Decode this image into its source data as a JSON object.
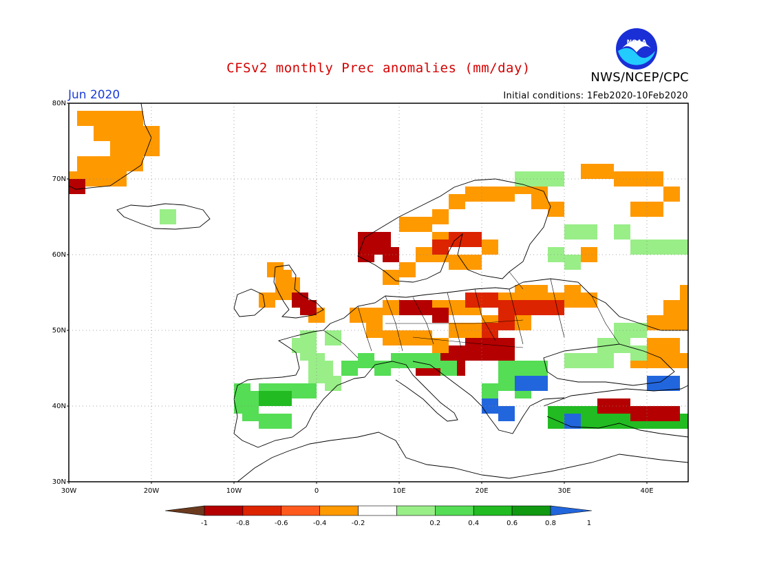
{
  "header": {
    "title": "CFSv2 monthly Prec anomalies (mm/day)",
    "agency": "NWS/NCEP/CPC",
    "month": "Jun 2020",
    "initial_conditions": "Initial conditions: 1Feb2020-10Feb2020",
    "logo_text": "NOAA"
  },
  "map": {
    "projection": "lat-lon",
    "lon_range": [
      -30,
      45
    ],
    "lat_range": [
      30,
      80
    ],
    "lat_labels": [
      "80N",
      "70N",
      "60N",
      "50N",
      "40N",
      "30N"
    ],
    "lon_labels": [
      "30W",
      "20W",
      "10W",
      "0",
      "10E",
      "20E",
      "30E",
      "40E"
    ]
  },
  "colorbar": {
    "labels": [
      "-1",
      "-0.8",
      "-0.6",
      "-0.4",
      "-0.2",
      "0.2",
      "0.4",
      "0.6",
      "0.8",
      "1"
    ],
    "colors": [
      "#6b3a1e",
      "#b40000",
      "#dc2400",
      "#ff5a1e",
      "#ff9900",
      "#ffffff",
      "#99ee88",
      "#55dd55",
      "#22bb22",
      "#119911",
      "#2266dd"
    ]
  },
  "anomaly_regions": [
    {
      "name": "greenland",
      "cat": -0.4,
      "cells": [
        [
          -28,
          78
        ],
        [
          -26,
          78
        ],
        [
          -24,
          78
        ],
        [
          -22,
          78
        ],
        [
          -26,
          76
        ],
        [
          -24,
          76
        ],
        [
          -22,
          76
        ],
        [
          -20,
          76
        ],
        [
          -24,
          74
        ],
        [
          -22,
          74
        ],
        [
          -20,
          74
        ],
        [
          -28,
          72
        ],
        [
          -26,
          72
        ],
        [
          -24,
          72
        ],
        [
          -22,
          72
        ],
        [
          -30,
          70
        ],
        [
          -28,
          70
        ],
        [
          -26,
          70
        ],
        [
          -24,
          70
        ]
      ]
    },
    {
      "name": "greenland-red",
      "cat": -0.8,
      "cells": [
        [
          -30,
          69
        ]
      ]
    },
    {
      "name": "iceland",
      "cat": 0.2,
      "cells": [
        [
          -18,
          65
        ]
      ]
    },
    {
      "name": "uk-ireland",
      "cat": -0.4,
      "cells": [
        [
          -5,
          58
        ],
        [
          -4,
          57
        ],
        [
          -3,
          56
        ],
        [
          -4,
          55
        ],
        [
          -2,
          54
        ],
        [
          -1,
          53
        ],
        [
          -6,
          54
        ],
        [
          0,
          52
        ]
      ]
    },
    {
      "name": "uk-red",
      "cat": -0.8,
      "cells": [
        [
          -2,
          54
        ],
        [
          -1,
          53
        ]
      ]
    },
    {
      "name": "norway-red",
      "cat": -0.8,
      "cells": [
        [
          6,
          62
        ],
        [
          7,
          61
        ],
        [
          8,
          62
        ],
        [
          6,
          60
        ],
        [
          9,
          60
        ]
      ]
    },
    {
      "name": "scandinavia-orange",
      "cat": -0.4,
      "cells": [
        [
          11,
          64
        ],
        [
          13,
          64
        ],
        [
          15,
          65
        ],
        [
          17,
          67
        ],
        [
          19,
          68
        ],
        [
          21,
          68
        ],
        [
          23,
          68
        ],
        [
          25,
          69
        ],
        [
          27,
          69
        ],
        [
          15,
          62
        ],
        [
          17,
          62
        ],
        [
          19,
          62
        ],
        [
          21,
          61
        ],
        [
          13,
          60
        ],
        [
          15,
          60
        ],
        [
          17,
          59
        ],
        [
          19,
          59
        ],
        [
          11,
          58
        ],
        [
          9,
          57
        ],
        [
          27,
          67
        ],
        [
          29,
          66
        ]
      ]
    },
    {
      "name": "sweden-red",
      "cat": -0.6,
      "cells": [
        [
          17,
          62
        ],
        [
          19,
          62
        ],
        [
          15,
          61
        ]
      ]
    },
    {
      "name": "baltic-central",
      "cat": -0.4,
      "cells": [
        [
          5,
          52
        ],
        [
          7,
          52
        ],
        [
          9,
          53
        ],
        [
          11,
          53
        ],
        [
          13,
          53
        ],
        [
          15,
          53
        ],
        [
          17,
          53
        ],
        [
          19,
          53
        ],
        [
          21,
          54
        ],
        [
          23,
          54
        ],
        [
          25,
          55
        ],
        [
          27,
          55
        ],
        [
          29,
          54
        ],
        [
          31,
          54
        ],
        [
          25,
          53
        ],
        [
          27,
          53
        ],
        [
          23,
          52
        ],
        [
          25,
          51
        ],
        [
          21,
          51
        ],
        [
          19,
          50
        ],
        [
          17,
          50
        ],
        [
          7,
          50
        ],
        [
          9,
          49
        ],
        [
          11,
          49
        ],
        [
          13,
          49
        ],
        [
          15,
          48
        ],
        [
          33,
          54
        ],
        [
          31,
          55
        ]
      ]
    },
    {
      "name": "central-red",
      "cat": -0.8,
      "cells": [
        [
          11,
          53
        ],
        [
          13,
          53
        ],
        [
          15,
          52
        ],
        [
          17,
          47
        ],
        [
          19,
          47
        ],
        [
          21,
          47
        ],
        [
          23,
          47
        ],
        [
          21,
          48
        ],
        [
          23,
          48
        ],
        [
          19,
          48
        ],
        [
          17,
          46
        ],
        [
          15,
          46
        ],
        [
          13,
          46
        ],
        [
          15,
          45
        ],
        [
          13,
          45
        ],
        [
          17,
          45
        ]
      ]
    },
    {
      "name": "baltic-red",
      "cat": -0.6,
      "cells": [
        [
          19,
          54
        ],
        [
          21,
          54
        ],
        [
          23,
          53
        ],
        [
          25,
          53
        ],
        [
          27,
          53
        ],
        [
          29,
          53
        ],
        [
          23,
          51
        ],
        [
          21,
          50
        ]
      ]
    },
    {
      "name": "alps-green",
      "cat": 0.4,
      "cells": [
        [
          6,
          46
        ],
        [
          8,
          45
        ],
        [
          10,
          46
        ],
        [
          12,
          46
        ],
        [
          14,
          46
        ],
        [
          16,
          45
        ],
        [
          4,
          45
        ]
      ]
    },
    {
      "name": "france-green",
      "cat": 0.2,
      "cells": [
        [
          -2,
          48
        ],
        [
          -1,
          47
        ],
        [
          0,
          46
        ],
        [
          1,
          45
        ],
        [
          0,
          44
        ],
        [
          2,
          43
        ],
        [
          -1,
          49
        ],
        [
          2,
          49
        ]
      ]
    },
    {
      "name": "iberia-green",
      "cat": 0.4,
      "cells": [
        [
          -9,
          42
        ],
        [
          -8,
          41
        ],
        [
          -7,
          41
        ],
        [
          -6,
          42
        ],
        [
          -5,
          42
        ],
        [
          -3,
          42
        ],
        [
          -2,
          42
        ],
        [
          -9,
          40
        ],
        [
          -8,
          39
        ],
        [
          -6,
          38
        ],
        [
          -4,
          38
        ],
        [
          -1,
          42
        ]
      ]
    },
    {
      "name": "iberia-green2",
      "cat": 0.6,
      "cells": [
        [
          -6,
          41
        ],
        [
          -4,
          41
        ]
      ]
    },
    {
      "name": "balkans-green",
      "cat": 0.4,
      "cells": [
        [
          23,
          45
        ],
        [
          25,
          45
        ],
        [
          27,
          45
        ],
        [
          25,
          44
        ],
        [
          27,
          44
        ],
        [
          23,
          43
        ],
        [
          25,
          42
        ],
        [
          21,
          42
        ],
        [
          21,
          41
        ]
      ]
    },
    {
      "name": "balkans-blue",
      "cat": 1,
      "cells": [
        [
          25,
          43
        ],
        [
          27,
          43
        ],
        [
          21,
          40
        ],
        [
          23,
          39
        ]
      ]
    },
    {
      "name": "turkey-green",
      "cat": 0.6,
      "cells": [
        [
          29,
          39
        ],
        [
          31,
          39
        ],
        [
          33,
          39
        ],
        [
          35,
          39
        ],
        [
          33,
          38
        ],
        [
          35,
          38
        ],
        [
          29,
          38
        ],
        [
          31,
          38
        ],
        [
          37,
          38
        ],
        [
          39,
          38
        ],
        [
          41,
          38
        ],
        [
          43,
          38
        ],
        [
          45,
          38
        ]
      ]
    },
    {
      "name": "turkey-blue",
      "cat": 1,
      "cells": [
        [
          31,
          38
        ],
        [
          41,
          43
        ],
        [
          43,
          43
        ]
      ]
    },
    {
      "name": "turkey-red",
      "cat": -0.8,
      "cells": [
        [
          35,
          40
        ],
        [
          37,
          40
        ],
        [
          39,
          39
        ],
        [
          41,
          39
        ],
        [
          43,
          39
        ]
      ]
    },
    {
      "name": "russia-orange",
      "cat": -0.4,
      "cells": [
        [
          33,
          71
        ],
        [
          35,
          71
        ],
        [
          37,
          70
        ],
        [
          39,
          70
        ],
        [
          41,
          70
        ],
        [
          39,
          66
        ],
        [
          41,
          66
        ],
        [
          43,
          68
        ],
        [
          43,
          53
        ],
        [
          45,
          53
        ],
        [
          41,
          51
        ],
        [
          43,
          51
        ],
        [
          45,
          51
        ],
        [
          43,
          48
        ],
        [
          41,
          48
        ],
        [
          39,
          46
        ],
        [
          41,
          46
        ],
        [
          43,
          46
        ],
        [
          45,
          46
        ],
        [
          45,
          55
        ],
        [
          33,
          60
        ]
      ]
    },
    {
      "name": "russia-green",
      "cat": 0.2,
      "cells": [
        [
          25,
          70
        ],
        [
          27,
          70
        ],
        [
          29,
          70
        ],
        [
          31,
          63
        ],
        [
          33,
          63
        ],
        [
          37,
          63
        ],
        [
          39,
          61
        ],
        [
          41,
          61
        ],
        [
          43,
          61
        ],
        [
          45,
          61
        ],
        [
          29,
          60
        ],
        [
          31,
          59
        ],
        [
          35,
          48
        ],
        [
          37,
          48
        ],
        [
          39,
          47
        ],
        [
          33,
          46
        ],
        [
          31,
          46
        ],
        [
          35,
          46
        ],
        [
          37,
          50
        ],
        [
          39,
          50
        ]
      ]
    }
  ]
}
